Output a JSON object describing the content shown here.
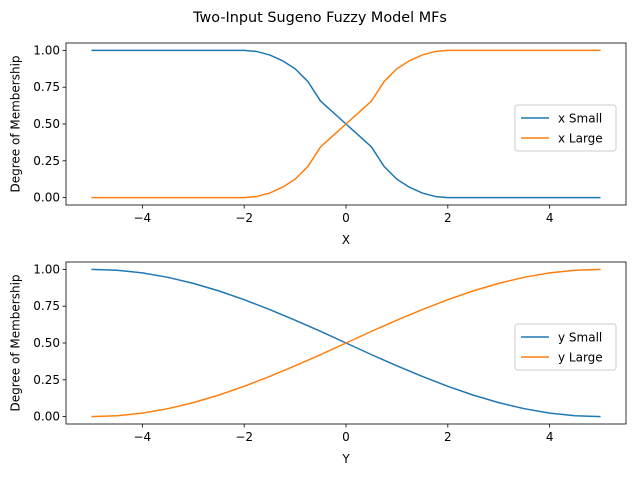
{
  "figure": {
    "title": "Two-Input Sugeno Fuzzy Model MFs"
  },
  "chart_data": [
    {
      "type": "line",
      "title": "",
      "xlabel": "X",
      "ylabel": "Degree of Membership",
      "xlim": [
        -5.5,
        5.5
      ],
      "ylim": [
        -0.05,
        1.05
      ],
      "xticks": [
        -4,
        -2,
        0,
        2,
        4
      ],
      "xtick_labels": [
        "−4",
        "−2",
        "0",
        "2",
        "4"
      ],
      "yticks": [
        0,
        0.25,
        0.5,
        0.75,
        1
      ],
      "ytick_labels": [
        "0.00",
        "0.25",
        "0.50",
        "0.75",
        "1.00"
      ],
      "grid": false,
      "legend_position": "right",
      "x": [
        -5,
        -4.5,
        -4,
        -3.5,
        -3,
        -2.5,
        -2,
        -1.75,
        -1.5,
        -1.25,
        -1,
        -0.75,
        -0.5,
        -0.25,
        0,
        0.25,
        0.5,
        0.75,
        1,
        1.25,
        1.5,
        1.75,
        2,
        2.5,
        3,
        3.5,
        4,
        4.5,
        5
      ],
      "series": [
        {
          "name": "x Small",
          "color": "#1f77b4",
          "values": [
            1,
            1,
            1,
            1,
            1,
            1,
            1,
            0.992,
            0.969,
            0.93,
            0.875,
            0.789,
            0.656,
            0.578,
            0.5,
            0.422,
            0.344,
            0.211,
            0.125,
            0.07,
            0.031,
            0.008,
            0,
            0,
            0,
            0,
            0,
            0,
            0
          ]
        },
        {
          "name": "x Large",
          "color": "#ff7f0e",
          "values": [
            0,
            0,
            0,
            0,
            0,
            0,
            0,
            0.008,
            0.031,
            0.07,
            0.125,
            0.211,
            0.344,
            0.422,
            0.5,
            0.578,
            0.656,
            0.789,
            0.875,
            0.93,
            0.969,
            0.992,
            1,
            1,
            1,
            1,
            1,
            1,
            1
          ]
        }
      ]
    },
    {
      "type": "line",
      "title": "",
      "xlabel": "Y",
      "ylabel": "Degree of Membership",
      "xlim": [
        -5.5,
        5.5
      ],
      "ylim": [
        -0.05,
        1.05
      ],
      "xticks": [
        -4,
        -2,
        0,
        2,
        4
      ],
      "xtick_labels": [
        "−4",
        "−2",
        "0",
        "2",
        "4"
      ],
      "yticks": [
        0,
        0.25,
        0.5,
        0.75,
        1
      ],
      "ytick_labels": [
        "0.00",
        "0.25",
        "0.50",
        "0.75",
        "1.00"
      ],
      "grid": false,
      "legend_position": "right",
      "x": [
        -5,
        -4.5,
        -4,
        -3.5,
        -3,
        -2.5,
        -2,
        -1.5,
        -1,
        -0.5,
        0,
        0.5,
        1,
        1.5,
        2,
        2.5,
        3,
        3.5,
        4,
        4.5,
        5
      ],
      "series": [
        {
          "name": "y Small",
          "color": "#1f77b4",
          "values": [
            1,
            0.994,
            0.976,
            0.946,
            0.905,
            0.854,
            0.794,
            0.727,
            0.655,
            0.579,
            0.5,
            0.421,
            0.345,
            0.273,
            0.206,
            0.146,
            0.095,
            0.054,
            0.024,
            0.006,
            0
          ]
        },
        {
          "name": "y Large",
          "color": "#ff7f0e",
          "values": [
            0,
            0.006,
            0.024,
            0.054,
            0.095,
            0.146,
            0.206,
            0.273,
            0.345,
            0.421,
            0.5,
            0.579,
            0.655,
            0.727,
            0.794,
            0.854,
            0.905,
            0.946,
            0.976,
            0.994,
            1
          ]
        }
      ]
    }
  ]
}
